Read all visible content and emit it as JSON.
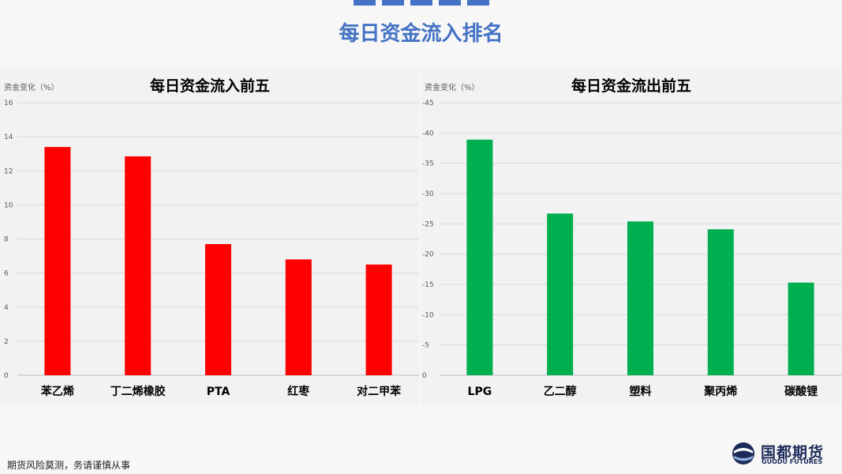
{
  "page": {
    "title": "每日资金流入排名",
    "footer_note": "期货风险莫测，务请谨慎从事",
    "logo": {
      "cn": "国都期货",
      "en": "GUODU FUTURES"
    }
  },
  "colors": {
    "accent": "#4472c4",
    "inflow": "#ff0000",
    "outflow": "#00b050"
  },
  "chart_data": [
    {
      "type": "bar",
      "title": "每日资金流入前五",
      "ylabel": "资金变化（%）",
      "categories": [
        "苯乙烯",
        "丁二烯橡胶",
        "PTA",
        "红枣",
        "对二甲苯"
      ],
      "values": [
        13.4,
        12.85,
        7.7,
        6.8,
        6.5
      ],
      "ylim": [
        0,
        16
      ],
      "yticks": [
        0,
        2,
        4,
        6,
        8,
        10,
        12,
        14,
        16
      ],
      "color": "#ff0000",
      "grid": true
    },
    {
      "type": "bar",
      "title": "每日资金流出前五",
      "ylabel": "资金变化（%）",
      "categories": [
        "LPG",
        "乙二醇",
        "塑料",
        "聚丙烯",
        "碳酸锂"
      ],
      "values": [
        -38.9,
        -26.7,
        -25.4,
        -24.1,
        -15.3
      ],
      "ylim": [
        0,
        -45
      ],
      "yticks": [
        0,
        -5,
        -10,
        -15,
        -20,
        -25,
        -30,
        -35,
        -40,
        -45
      ],
      "inverted_axis": true,
      "color": "#00b050",
      "grid": true
    }
  ]
}
